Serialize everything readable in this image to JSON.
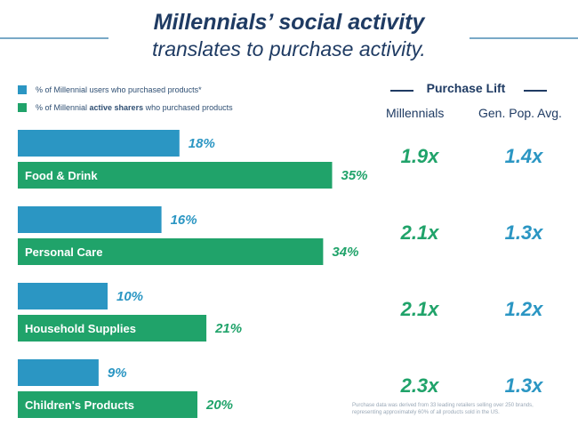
{
  "title": {
    "line1": "Millennials’ social activity",
    "line2": "translates to purchase activity."
  },
  "legend": [
    {
      "color": "#2b96c3",
      "prefix": "% of Millennial users who purchased products*",
      "bold": "",
      "suffix": ""
    },
    {
      "color": "#20a36a",
      "prefix": "% of Millennial ",
      "bold": "active sharers",
      "suffix": " who purchased products"
    }
  ],
  "purchase_lift": {
    "title": "Purchase Lift",
    "millennials_header": "Millennials",
    "genpop_header": "Gen. Pop. Avg."
  },
  "footnote": "Purchase data was derived from 33 leading retailers selling over 250 brands, representing approximately 60% of all products sold in the US.",
  "chart_data": {
    "type": "bar",
    "categories": [
      "Food & Drink",
      "Personal Care",
      "Household Supplies",
      "Children's Products"
    ],
    "series": [
      {
        "name": "% of Millennial users who purchased products*",
        "values": [
          18,
          16,
          10,
          9
        ],
        "labels": [
          "18%",
          "16%",
          "10%",
          "9%"
        ],
        "color": "#2b96c3"
      },
      {
        "name": "% of Millennial active sharers who purchased products",
        "values": [
          35,
          34,
          21,
          20
        ],
        "labels": [
          "35%",
          "34%",
          "21%",
          "20%"
        ],
        "color": "#20a36a"
      }
    ],
    "purchase_lift": {
      "millennials": [
        "1.9x",
        "2.1x",
        "2.1x",
        "2.3x"
      ],
      "gen_pop_avg": [
        "1.4x",
        "1.3x",
        "1.2x",
        "1.3x"
      ]
    },
    "xlim": [
      0,
      35
    ],
    "grid": false,
    "legend_placement": "top-left"
  }
}
